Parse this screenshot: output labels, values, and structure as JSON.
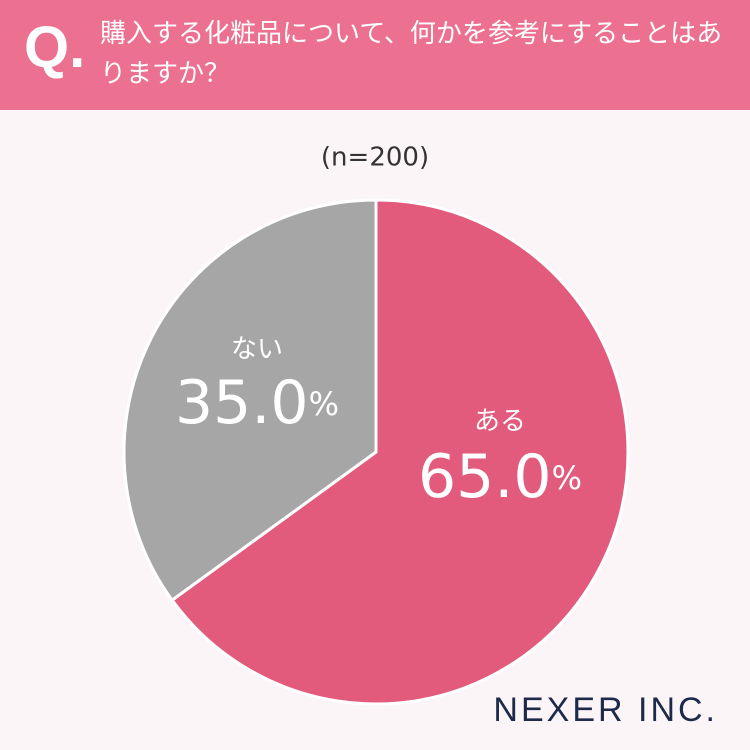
{
  "question_label": "Q.",
  "logo": "NEXER INC.",
  "chart_data": {
    "type": "pie",
    "title": "購入する化粧品について、何かを参考にすることはありますか？",
    "subtitle": "(n=200)",
    "categories": [
      "ある",
      "ない"
    ],
    "values": [
      65.0,
      35.0
    ],
    "value_labels": [
      "65.0%",
      "35.0%"
    ],
    "colors": [
      "#e25a7c",
      "#a6a6a6"
    ]
  }
}
